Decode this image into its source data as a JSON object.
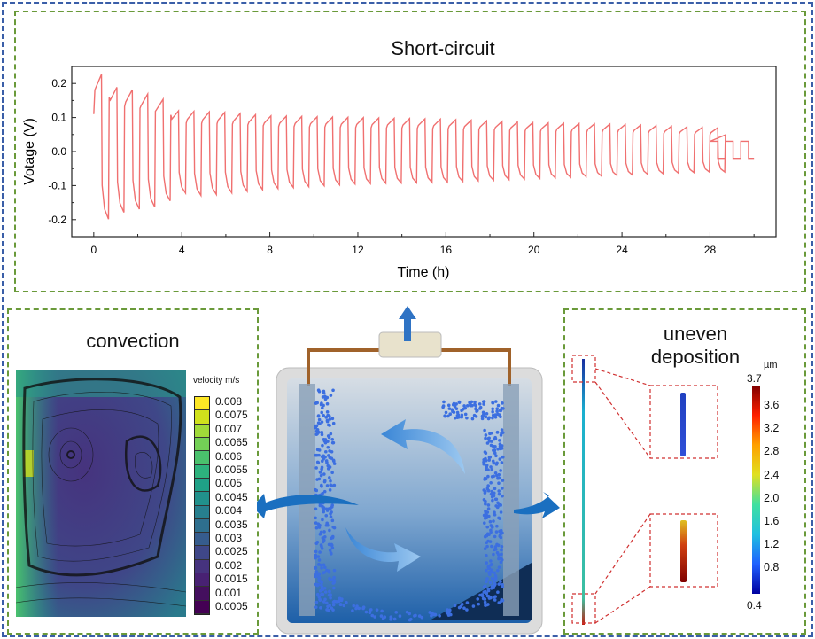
{
  "top_panel": {
    "title": "Short-circuit"
  },
  "chart_data": {
    "type": "line",
    "title": "Short-circuit",
    "xlabel": "Time (h)",
    "ylabel": "Votage (V)",
    "xlim": [
      -1,
      31
    ],
    "ylim": [
      -0.25,
      0.25
    ],
    "xticks": [
      "0",
      "4",
      "8",
      "12",
      "16",
      "20",
      "24",
      "28"
    ],
    "yticks": [
      "0.2",
      "0.1",
      "0.0",
      "-0.1",
      "-0.2"
    ],
    "grid": false,
    "color": "#f07070",
    "cycle_period_h": 0.7,
    "upper_envelope": [
      [
        0,
        0.25
      ],
      [
        0.9,
        0.19
      ],
      [
        1.6,
        0.185
      ],
      [
        2.3,
        0.17
      ],
      [
        3,
        0.165
      ],
      [
        3.6,
        0.12
      ],
      [
        6,
        0.115
      ],
      [
        8,
        0.105
      ],
      [
        12,
        0.1
      ],
      [
        16,
        0.095
      ],
      [
        20,
        0.085
      ],
      [
        24,
        0.08
      ],
      [
        28,
        0.07
      ]
    ],
    "lower_envelope": [
      [
        0,
        -0.22
      ],
      [
        1.3,
        -0.18
      ],
      [
        2,
        -0.17
      ],
      [
        2.7,
        -0.165
      ],
      [
        3.4,
        -0.15
      ],
      [
        4,
        -0.12
      ],
      [
        5,
        -0.13
      ],
      [
        8,
        -0.11
      ],
      [
        12,
        -0.095
      ],
      [
        16,
        -0.09
      ],
      [
        20,
        -0.08
      ],
      [
        24,
        -0.07
      ],
      [
        28,
        -0.06
      ]
    ],
    "tail": {
      "from_h": 28,
      "to_h": 30,
      "high": 0.03,
      "low": -0.02
    }
  },
  "convection": {
    "title": "convection",
    "colorbar_label": "velocity m/s",
    "colorbar_ticks": [
      "0.008",
      "0.0075",
      "0.007",
      "0.0065",
      "0.006",
      "0.0055",
      "0.005",
      "0.0045",
      "0.004",
      "0.0035",
      "0.003",
      "0.0025",
      "0.002",
      "0.0015",
      "0.001",
      "0.0005"
    ],
    "colors": [
      "#fde725",
      "#d0e11c",
      "#a0da39",
      "#73d056",
      "#4ac16d",
      "#2db27d",
      "#1fa187",
      "#21918c",
      "#277f8e",
      "#2e6f8e",
      "#365c8d",
      "#3f4788",
      "#46337e",
      "#482173",
      "#440f5e",
      "#440154"
    ]
  },
  "deposition": {
    "title_line1": "uneven",
    "title_line2": "deposition",
    "unit": "µm",
    "max_label": "3.7",
    "min_label": "0.4",
    "colorbar_ticks": [
      "3.6",
      "3.2",
      "2.8",
      "2.4",
      "2.0",
      "1.6",
      "1.2",
      "0.8"
    ]
  }
}
